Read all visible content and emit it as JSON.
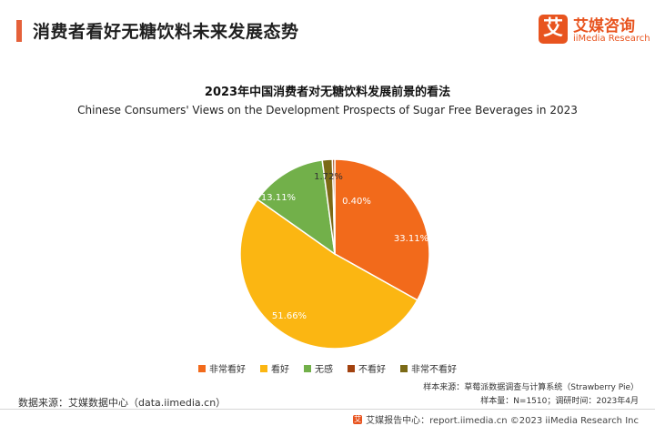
{
  "header": {
    "title": "消费者看好无糖饮料未来发展态势",
    "accent_color": "#e5613a"
  },
  "logo": {
    "mark": "艾",
    "name_cn": "艾媒咨询",
    "name_en": "iiMedia Research"
  },
  "chart_data": {
    "type": "pie",
    "title": "2023年中国消费者对无糖饮料发展前景的看法",
    "subtitle": "Chinese Consumers' Views on the Development Prospects of Sugar Free Beverages in 2023",
    "slices": [
      {
        "label": "非常看好",
        "value": 33.11,
        "display": "33.11%",
        "color": "#f26a1b"
      },
      {
        "label": "看好",
        "value": 51.66,
        "display": "51.66%",
        "color": "#fbb612"
      },
      {
        "label": "无感",
        "value": 13.11,
        "display": "13.11%",
        "color": "#72b04a"
      },
      {
        "label": "不看好",
        "value": 0.4,
        "display": "0.40%",
        "color": "#a2420f"
      },
      {
        "label": "非常不看好",
        "value": 1.72,
        "display": "1.72%",
        "color": "#7b6a16"
      }
    ],
    "legend_position": "bottom"
  },
  "source": {
    "left": "数据来源：艾媒数据中心（data.iimedia.cn）",
    "sample_source": "样本来源：草莓派数据调查与计算系统（Strawberry Pie）",
    "sample_info": "样本量：N=1510；调研时间：2023年4月"
  },
  "footer": {
    "icon": "艾",
    "text": "艾媒报告中心：report.iimedia.cn ©2023 iiMedia Research Inc"
  }
}
